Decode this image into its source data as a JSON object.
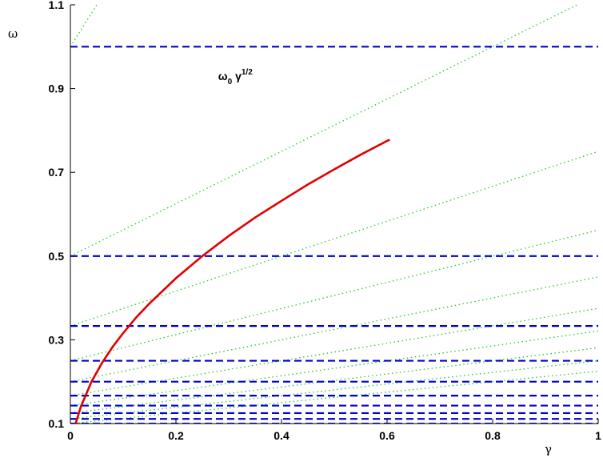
{
  "chart_data": {
    "type": "line",
    "xlabel": "γ",
    "ylabel": "ω",
    "xlim": [
      0,
      1
    ],
    "ylim": [
      0.1,
      1.1
    ],
    "x_ticks": [
      0,
      0.2,
      0.4,
      0.6,
      0.8,
      1
    ],
    "x_tick_labels": [
      "0",
      "0.2",
      "0.4",
      "0.6",
      "0.8",
      "1"
    ],
    "y_ticks": [
      0.1,
      0.3,
      0.5,
      0.7,
      0.9,
      1.1
    ],
    "y_tick_labels": [
      "0.1",
      "0.3",
      "0.5",
      "0.7",
      "0.9",
      "1.1"
    ],
    "grid": false,
    "colors": {
      "curve": "#e00000",
      "dashed": "#0000cc",
      "dotted": "#22cc22"
    },
    "annotation": {
      "base": "ω",
      "sub": "0",
      "mid": " γ",
      "sup": "1/2",
      "x": 0.28,
      "y": 0.92
    },
    "series": [
      {
        "style": "solid",
        "x": [
          0.01,
          0.02,
          0.04,
          0.06,
          0.08,
          0.1,
          0.125,
          0.15,
          0.2,
          0.25,
          0.3,
          0.35,
          0.4,
          0.45,
          0.5,
          0.55,
          0.6,
          0.605
        ],
        "y": [
          0.1,
          0.141,
          0.2,
          0.245,
          0.283,
          0.316,
          0.354,
          0.387,
          0.447,
          0.5,
          0.548,
          0.592,
          0.632,
          0.671,
          0.707,
          0.742,
          0.775,
          0.778
        ]
      },
      {
        "style": "dashed",
        "y": 1.0
      },
      {
        "style": "dashed",
        "y": 0.5
      },
      {
        "style": "dashed",
        "y": 0.333
      },
      {
        "style": "dashed",
        "y": 0.25
      },
      {
        "style": "dashed",
        "y": 0.2
      },
      {
        "style": "dashed",
        "y": 0.1667
      },
      {
        "style": "dashed",
        "y": 0.1429
      },
      {
        "style": "dashed",
        "y": 0.125
      },
      {
        "style": "dashed",
        "y": 0.1111
      },
      {
        "style": "dashed",
        "y": 0.1
      },
      {
        "style": "dotted",
        "x": [
          0,
          0.05
        ],
        "y": [
          1.0,
          1.1
        ]
      },
      {
        "style": "dotted",
        "x": [
          0,
          0.96
        ],
        "y": [
          0.5,
          1.1
        ]
      },
      {
        "style": "dotted",
        "x": [
          0,
          1
        ],
        "y": [
          0.333,
          0.75
        ]
      },
      {
        "style": "dotted",
        "x": [
          0,
          1
        ],
        "y": [
          0.25,
          0.562
        ]
      },
      {
        "style": "dotted",
        "x": [
          0,
          1
        ],
        "y": [
          0.2,
          0.45
        ]
      },
      {
        "style": "dotted",
        "x": [
          0,
          1
        ],
        "y": [
          0.1667,
          0.375
        ]
      },
      {
        "style": "dotted",
        "x": [
          0,
          1
        ],
        "y": [
          0.1429,
          0.321
        ]
      },
      {
        "style": "dotted",
        "x": [
          0,
          1
        ],
        "y": [
          0.125,
          0.281
        ]
      },
      {
        "style": "dotted",
        "x": [
          0,
          1
        ],
        "y": [
          0.1111,
          0.25
        ]
      },
      {
        "style": "dotted",
        "x": [
          0,
          1
        ],
        "y": [
          0.1,
          0.225
        ]
      }
    ]
  }
}
